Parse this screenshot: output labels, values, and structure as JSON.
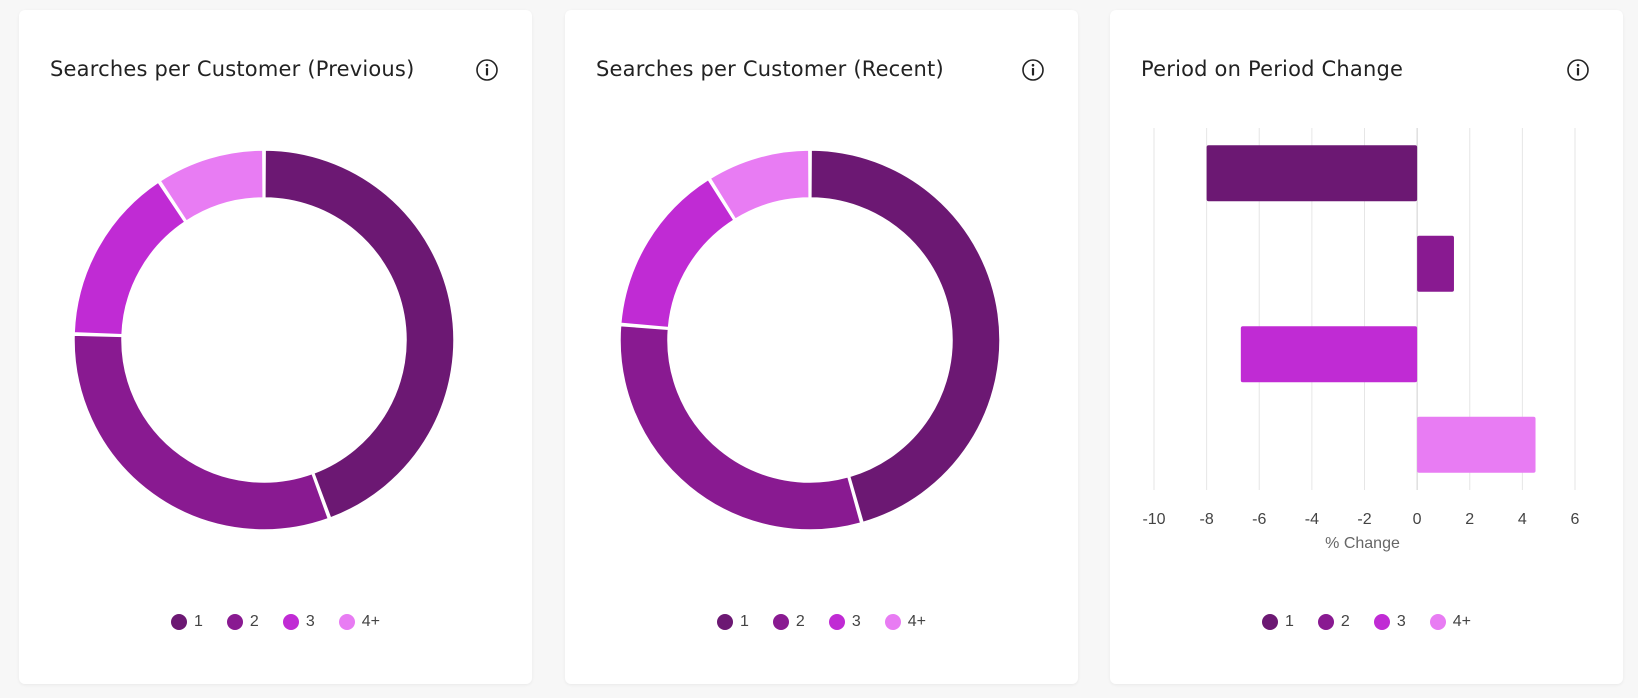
{
  "colors": {
    "c1": "#6c1873",
    "c2": "#891a91",
    "c3": "#c02bd4",
    "c4": "#e87cf3"
  },
  "icons": {
    "info": "info-icon"
  },
  "cards": [
    {
      "title": "Searches per Customer (Previous)",
      "legend": [
        "1",
        "2",
        "3",
        "4+"
      ]
    },
    {
      "title": "Searches per Customer (Recent)",
      "legend": [
        "1",
        "2",
        "3",
        "4+"
      ]
    },
    {
      "title": "Period on Period Change",
      "legend": [
        "1",
        "2",
        "3",
        "4+"
      ]
    }
  ],
  "chart_data": [
    {
      "type": "pie",
      "variant": "donut",
      "title": "Searches per Customer (Previous)",
      "categories": [
        "1",
        "2",
        "3",
        "4+"
      ],
      "values": [
        44.4,
        31.1,
        15.2,
        9.3
      ],
      "legend_position": "bottom"
    },
    {
      "type": "pie",
      "variant": "donut",
      "title": "Searches per Customer (Recent)",
      "categories": [
        "1",
        "2",
        "3",
        "4+"
      ],
      "values": [
        45.6,
        30.7,
        14.8,
        8.9
      ],
      "legend_position": "bottom"
    },
    {
      "type": "bar",
      "orientation": "horizontal",
      "title": "Period on Period Change",
      "categories": [
        "1",
        "2",
        "3",
        "4+"
      ],
      "values": [
        -8.0,
        1.4,
        -6.7,
        4.5
      ],
      "xlabel": "% Change",
      "ylabel": "",
      "xlim": [
        -10,
        6
      ],
      "xticks": [
        "-10",
        "-8",
        "-6",
        "-4",
        "-2",
        "0",
        "2",
        "4",
        "6"
      ],
      "grid": true,
      "legend_position": "bottom"
    }
  ]
}
